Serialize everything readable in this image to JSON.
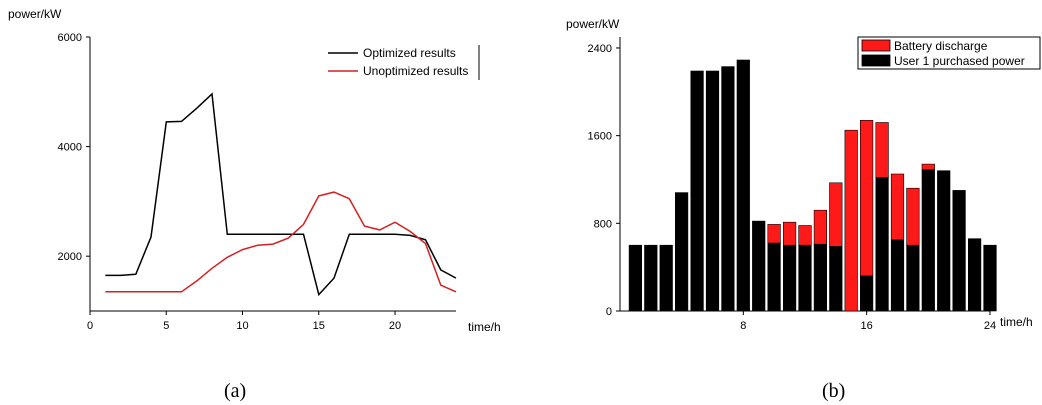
{
  "chart_data": [
    {
      "type": "line",
      "ylabel": "power/kW",
      "xlabel": "time/h",
      "xlim": [
        0,
        24
      ],
      "ylim": [
        1000,
        6000
      ],
      "xticks": [
        0,
        5,
        10,
        15,
        20
      ],
      "yticks": [
        2000,
        4000,
        6000
      ],
      "legend_position": "top-right",
      "series": [
        {
          "name": "Optimized results",
          "color": "#000000",
          "x": [
            1,
            2,
            3,
            4,
            5,
            6,
            7,
            8,
            9,
            10,
            11,
            12,
            13,
            14,
            15,
            16,
            17,
            18,
            19,
            20,
            21,
            22,
            23,
            24
          ],
          "values": [
            1650,
            1650,
            1670,
            2350,
            4450,
            4460,
            4700,
            4960,
            2400,
            2400,
            2400,
            2400,
            2400,
            2400,
            1300,
            1600,
            2400,
            2400,
            2400,
            2400,
            2380,
            2300,
            1750,
            1600
          ]
        },
        {
          "name": "Unoptimized results",
          "color": "#d42020",
          "x": [
            1,
            2,
            3,
            4,
            5,
            6,
            7,
            8,
            9,
            10,
            11,
            12,
            13,
            14,
            15,
            16,
            17,
            18,
            19,
            20,
            21,
            22,
            23,
            24
          ],
          "values": [
            1350,
            1350,
            1350,
            1350,
            1350,
            1350,
            1550,
            1780,
            1980,
            2120,
            2200,
            2220,
            2330,
            2580,
            3100,
            3170,
            3050,
            2550,
            2480,
            2620,
            2450,
            2230,
            1470,
            1350
          ]
        }
      ],
      "caption": "(a)"
    },
    {
      "type": "bar",
      "stacked": true,
      "ylabel": "power/kW",
      "xlabel": "time/h",
      "xlim": [
        0,
        24
      ],
      "ylim": [
        0,
        2500
      ],
      "xticks": [
        8,
        16,
        24
      ],
      "yticks": [
        0,
        800,
        1600,
        2400
      ],
      "legend_position": "top-right",
      "categories": [
        1,
        2,
        3,
        4,
        5,
        6,
        7,
        8,
        9,
        10,
        11,
        12,
        13,
        14,
        15,
        16,
        17,
        18,
        19,
        20,
        21,
        22,
        23,
        24
      ],
      "series": [
        {
          "name": "User 1 purchased power",
          "color": "#000000",
          "values": [
            600,
            600,
            600,
            1080,
            2190,
            2190,
            2230,
            2290,
            820,
            620,
            600,
            600,
            610,
            590,
            0,
            320,
            1220,
            650,
            600,
            1290,
            1280,
            1100,
            660,
            600
          ]
        },
        {
          "name": "Battery discharge",
          "color": "#ff1a1a",
          "values": [
            0,
            0,
            0,
            0,
            0,
            0,
            0,
            0,
            0,
            170,
            210,
            180,
            310,
            580,
            1650,
            1420,
            500,
            600,
            520,
            50,
            0,
            0,
            0,
            0
          ]
        }
      ],
      "caption": "(b)"
    }
  ]
}
